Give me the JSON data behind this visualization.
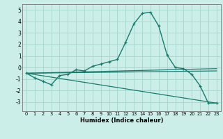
{
  "xlabel": "Humidex (Indice chaleur)",
  "background_color": "#cceee8",
  "grid_color": "#aad8d0",
  "line_color": "#1a7a6e",
  "x_ticks": [
    0,
    1,
    2,
    3,
    4,
    5,
    6,
    7,
    8,
    9,
    10,
    11,
    12,
    13,
    14,
    15,
    16,
    17,
    18,
    19,
    20,
    21,
    22,
    23
  ],
  "ylim": [
    -3.8,
    5.5
  ],
  "yticks": [
    -3,
    -2,
    -1,
    0,
    1,
    2,
    3,
    4,
    5
  ],
  "main_line_x": [
    0,
    1,
    2,
    3,
    4,
    5,
    6,
    7,
    8,
    9,
    10,
    11,
    12,
    13,
    14,
    15,
    16,
    17,
    18,
    19,
    20,
    21,
    22,
    23
  ],
  "main_line_y": [
    -0.5,
    -0.9,
    -1.2,
    -1.5,
    -0.7,
    -0.6,
    -0.2,
    -0.3,
    0.1,
    0.3,
    0.5,
    0.7,
    2.2,
    3.8,
    4.7,
    4.8,
    3.6,
    1.1,
    0.0,
    -0.1,
    -0.6,
    -1.6,
    -3.1,
    -3.1
  ],
  "straight_lines": [
    {
      "x": [
        0,
        23
      ],
      "y": [
        -0.5,
        -0.3
      ]
    },
    {
      "x": [
        0,
        23
      ],
      "y": [
        -0.5,
        -0.1
      ]
    },
    {
      "x": [
        0,
        23
      ],
      "y": [
        -0.5,
        -3.1
      ]
    }
  ]
}
